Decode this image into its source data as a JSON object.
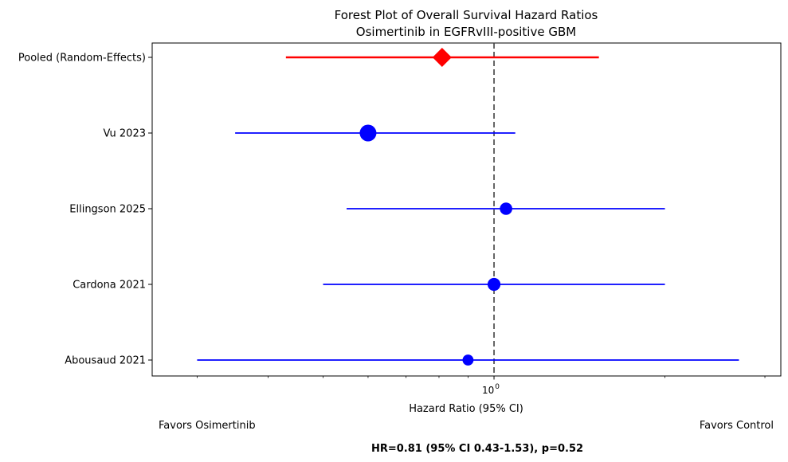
{
  "chart_data": {
    "type": "forest",
    "title_line1": "Forest Plot of Overall Survival Hazard Ratios",
    "title_line2": "Osimertinib in EGFRvIII-positive GBM",
    "xlabel": "Hazard Ratio (95% CI)",
    "x_scale": "log",
    "xlim": [
      0.25,
      3.2
    ],
    "x_ticks": [
      {
        "value": 1,
        "base": "10",
        "exp": "0"
      }
    ],
    "reference_line": 1,
    "left_annotation": "Favors Osimertinib",
    "right_annotation": "Favors Control",
    "footer": "HR=0.81 (95% CI 0.43-1.53), p=0.52",
    "grid": false,
    "studies": [
      {
        "label": "Pooled (Random-Effects)",
        "hr": 0.81,
        "ci_low": 0.43,
        "ci_high": 1.53,
        "marker": "diamond",
        "color": "#ff0000",
        "pooled": true,
        "weight": 1.0
      },
      {
        "label": "Vu 2023",
        "hr": 0.6,
        "ci_low": 0.35,
        "ci_high": 1.09,
        "marker": "circle",
        "color": "#0000ff",
        "pooled": false,
        "weight": 1.0
      },
      {
        "label": "Ellingson 2025",
        "hr": 1.05,
        "ci_low": 0.55,
        "ci_high": 2.0,
        "marker": "circle",
        "color": "#0000ff",
        "pooled": false,
        "weight": 0.55
      },
      {
        "label": "Cardona 2021",
        "hr": 1.0,
        "ci_low": 0.5,
        "ci_high": 2.0,
        "marker": "circle",
        "color": "#0000ff",
        "pooled": false,
        "weight": 0.6
      },
      {
        "label": "Abousaud 2021",
        "hr": 0.9,
        "ci_low": 0.3,
        "ci_high": 2.7,
        "marker": "circle",
        "color": "#0000ff",
        "pooled": false,
        "weight": 0.4
      }
    ]
  }
}
